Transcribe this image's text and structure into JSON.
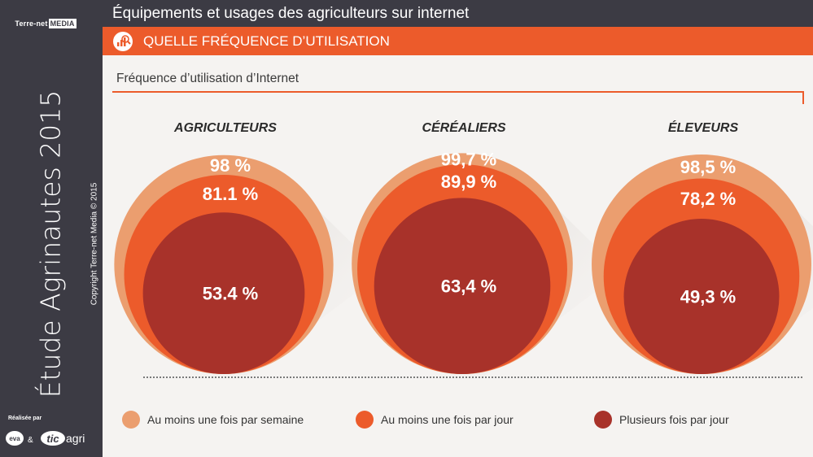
{
  "sidebar": {
    "logo_prefix": "Terre-net",
    "logo_suffix": "MEDIA",
    "study_title": "Étude Agrinautes 2015",
    "copyright": "Copyright Terre-net Media © 2015",
    "made_by": "Réalisée par",
    "partner_eva": "eva",
    "partner_amp": "&",
    "partner_tic": "tic",
    "partner_agri": "agri"
  },
  "header": {
    "title": "Équipements et usages des agriculteurs sur internet"
  },
  "section": {
    "title": "QUELLE FRÉQUENCE D’UTILISATION",
    "icon": "chart-magnifier-icon"
  },
  "colors": {
    "outer": "#eb9e6f",
    "middle": "#ec5b2b",
    "inner": "#a8322a",
    "accent": "#ec5b2b",
    "sidebar": "#3c3b44"
  },
  "chart_data": {
    "type": "nested-circle",
    "title": "Fréquence d’utilisation d’Internet",
    "legend": [
      "Au moins une fois par semaine",
      "Au moins une fois par jour",
      "Plusieurs fois par jour"
    ],
    "groups": [
      {
        "name": "AGRICULTEURS",
        "values": [
          98,
          81.1,
          53.4
        ],
        "labels": [
          "98 %",
          "81.1 %",
          "53.4 %"
        ]
      },
      {
        "name": "CÉRÉALIERS",
        "values": [
          99.7,
          89.9,
          63.4
        ],
        "labels": [
          "99,7 %",
          "89,9 %",
          "63,4 %"
        ]
      },
      {
        "name": "ÉLEVEURS",
        "values": [
          98.5,
          78.2,
          49.3
        ],
        "labels": [
          "98,5 %",
          "78,2 %",
          "49,3 %"
        ]
      }
    ]
  }
}
